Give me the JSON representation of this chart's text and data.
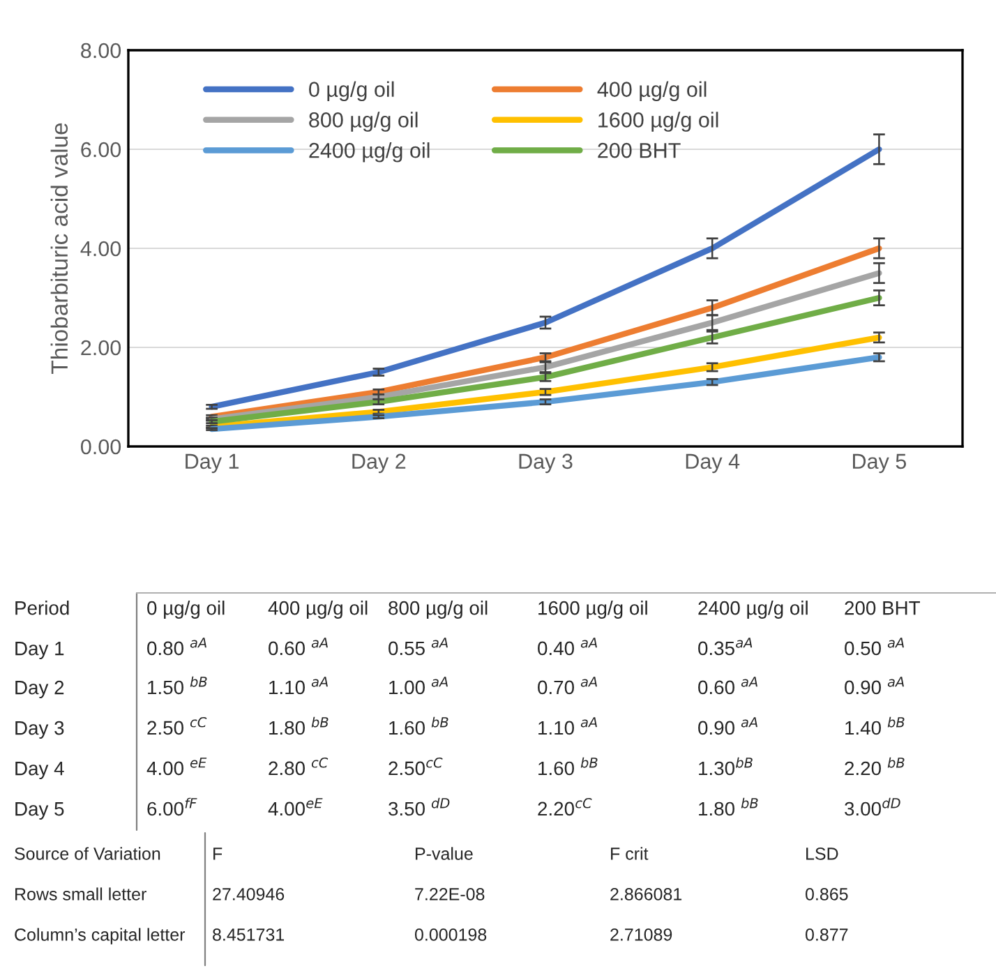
{
  "chart_data": {
    "type": "line",
    "ylabel": "Thiobarbituric acid value",
    "categories": [
      "Day 1",
      "Day 2",
      "Day 3",
      "Day 4",
      "Day 5"
    ],
    "ylim": [
      0,
      8
    ],
    "yticks": [
      {
        "value": 0,
        "label": "0.00"
      },
      {
        "value": 2,
        "label": "2.00"
      },
      {
        "value": 4,
        "label": "4.00"
      },
      {
        "value": 6,
        "label": "6.00"
      },
      {
        "value": 8,
        "label": "8.00"
      }
    ],
    "grid": "y",
    "legend": "top left",
    "marker": "none",
    "line_style": "solid",
    "series": [
      {
        "name": "0 µg/g oil",
        "color": "#4472c4",
        "values": [
          0.8,
          1.5,
          2.5,
          4.0,
          6.0
        ],
        "errors": [
          0.04,
          0.07,
          0.12,
          0.2,
          0.3
        ]
      },
      {
        "name": "400 µg/g oil",
        "color": "#ed7d31",
        "values": [
          0.6,
          1.1,
          1.8,
          2.8,
          4.0
        ],
        "errors": [
          0.03,
          0.05,
          0.08,
          0.15,
          0.2
        ]
      },
      {
        "name": "800 µg/g oil",
        "color": "#a5a5a5",
        "values": [
          0.55,
          1.0,
          1.6,
          2.5,
          3.5
        ],
        "errors": [
          0.03,
          0.05,
          0.1,
          0.15,
          0.2
        ]
      },
      {
        "name": "1600 µg/g oil",
        "color": "#ffc000",
        "values": [
          0.4,
          0.7,
          1.1,
          1.6,
          2.2
        ],
        "errors": [
          0.02,
          0.04,
          0.06,
          0.08,
          0.1
        ]
      },
      {
        "name": "2400 µg/g oil",
        "color": "#5b9bd5",
        "values": [
          0.35,
          0.6,
          0.9,
          1.3,
          1.8
        ],
        "errors": [
          0.02,
          0.03,
          0.05,
          0.06,
          0.08
        ]
      },
      {
        "name": "200 BHT",
        "color": "#70ad47",
        "values": [
          0.5,
          0.9,
          1.4,
          2.2,
          3.0
        ],
        "errors": [
          0.03,
          0.05,
          0.08,
          0.12,
          0.15
        ]
      }
    ],
    "annotations": [
      "Period",
      "0.80 $^{aA}$",
      "0.60 $^{aA}$",
      "0.55 $^{aA}$",
      "0.40 $^{aA}$",
      "0.35$^{aA}$",
      "0.50 $^{aA}$",
      "1.50 $^{bB}$",
      "1.10 $^{aA}$",
      "1.00 $^{aA}$",
      "0.70 $^{aA}$",
      "0.60 $^{aA}$",
      "0.90 $^{aA}$",
      "2.50 $^{cC}$",
      "1.80 $^{bB}$",
      "1.60 $^{bB}$",
      "1.10 $^{aA}$",
      "0.90 $^{aA}$",
      "1.40 $^{bB}$",
      "4.00 $^{eE}$",
      "2.80 $^{cC}$",
      "2.50$^{cC}$",
      "1.60 $^{bB}$",
      "1.30$^{bB}$",
      "2.20 $^{bB}$",
      "6.00$^{fF}$",
      "4.00$^{eE}$",
      "3.50 $^{dD}$",
      "2.20$^{cC}$",
      "1.80 $^{bB}$",
      "3.00$^{dD}$",
      "Source of Variation",
      "F",
      "P-value",
      "F crit",
      "LSD",
      "Rows small letter",
      "27.40946",
      "7.22E-08",
      "2.866081",
      "0.865",
      "Column’s capital letter",
      "8.451731",
      "0.000198",
      "2.71089",
      "0.877"
    ]
  }
}
